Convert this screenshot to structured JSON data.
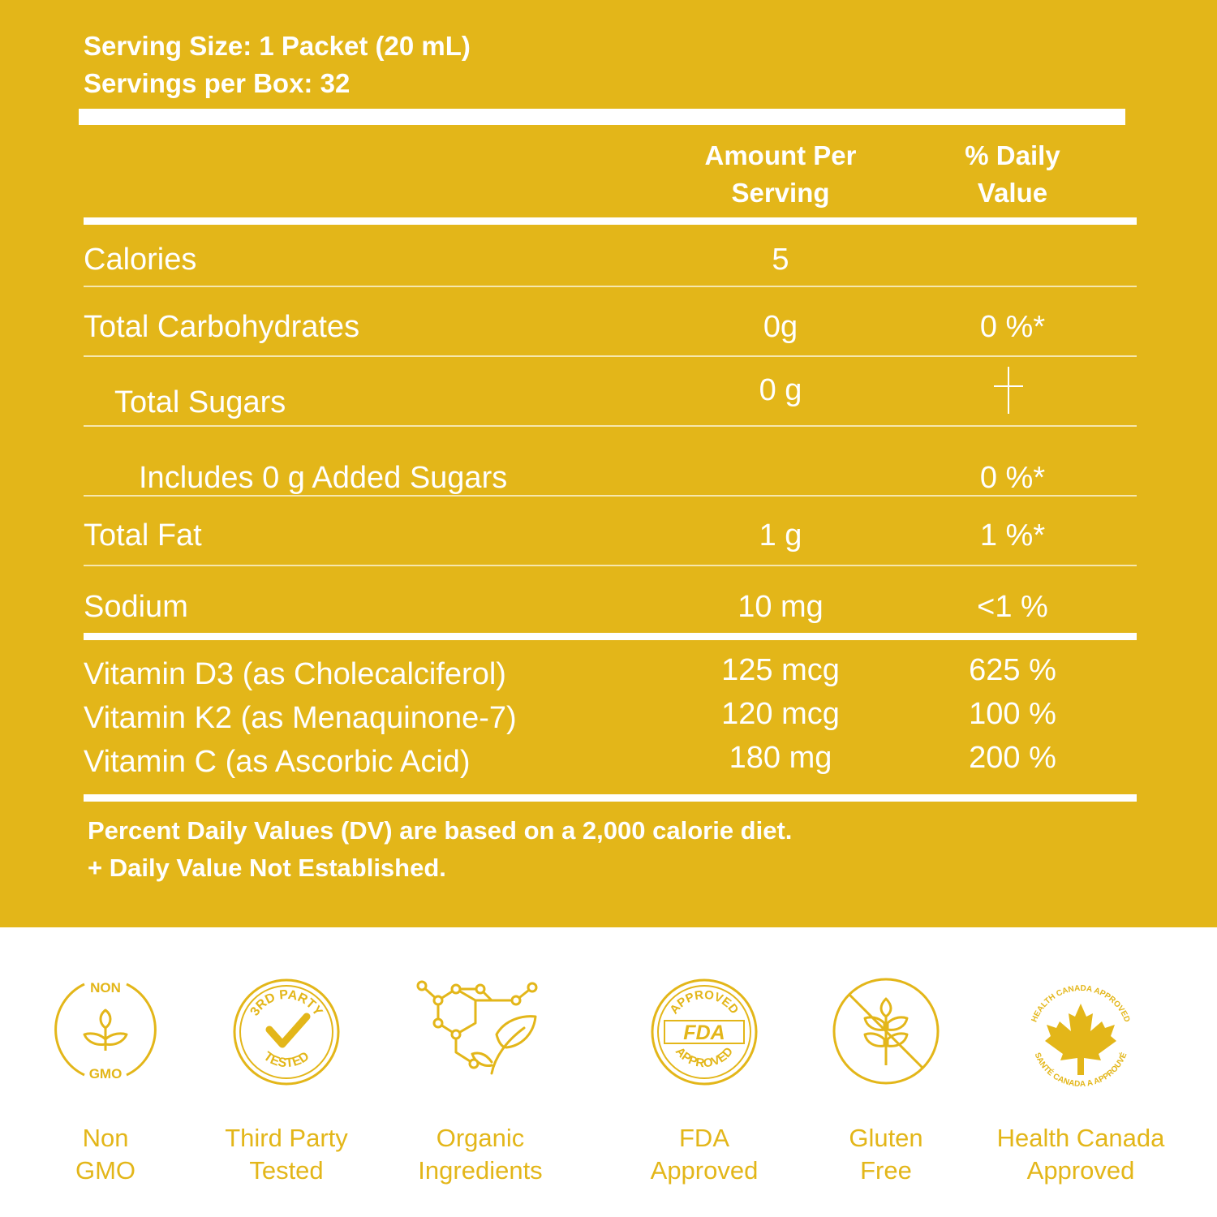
{
  "colors": {
    "panel": "#e3b619",
    "text": "#ffffff",
    "accent": "#e3b619"
  },
  "header": {
    "serving_size": "Serving Size: 1 Packet (20 mL)",
    "servings_per_box": "Servings per Box: 32"
  },
  "columns": {
    "amount_line1": "Amount Per",
    "amount_line2": "Serving",
    "dv_line1": "% Daily",
    "dv_line2": "Value"
  },
  "rows": [
    {
      "label": "Calories",
      "amount": "5",
      "dv": ""
    },
    {
      "label": "Total Carbohydrates",
      "amount": "0g",
      "dv": "0 %*"
    },
    {
      "label": "Total Sugars",
      "amount": "0 g",
      "dv": "+"
    },
    {
      "label": "Includes 0 g Added Sugars",
      "amount": "",
      "dv": "0 %*"
    },
    {
      "label": "Total Fat",
      "amount": "1 g",
      "dv": "1 %*"
    },
    {
      "label": "Sodium",
      "amount": "10 mg",
      "dv": "<1 %"
    }
  ],
  "vitamins": [
    {
      "label": "Vitamin D3 (as Cholecalciferol)",
      "amount": "125 mcg",
      "dv": "625 %"
    },
    {
      "label": "Vitamin K2 (as Menaquinone-7)",
      "amount": "120 mcg",
      "dv": "100 %"
    },
    {
      "label": "Vitamin C (as Ascorbic Acid)",
      "amount": "180 mg",
      "dv": "200 %"
    }
  ],
  "footnotes": [
    "Percent Daily Values (DV) are based on a 2,000 calorie diet.",
    "+ Daily Value Not Established."
  ],
  "badges": [
    {
      "icon": "non-gmo-icon",
      "line1": "Non",
      "line2": "GMO",
      "ring_top": "NON",
      "ring_bottom": "GMO"
    },
    {
      "icon": "third-party-tested-icon",
      "line1": "Third Party",
      "line2": "Tested",
      "ring_top": "3RD PARTY",
      "ring_bottom": "TESTED"
    },
    {
      "icon": "organic-molecule-leaf-icon",
      "line1": "Organic",
      "line2": "Ingredients"
    },
    {
      "icon": "fda-approved-seal-icon",
      "line1": "FDA",
      "line2": "Approved",
      "ring_top": "APPROVED",
      "ring_bottom": "APPROVED",
      "seal_text": "FDA"
    },
    {
      "icon": "gluten-free-wheat-icon",
      "line1": "Gluten",
      "line2": "Free"
    },
    {
      "icon": "maple-leaf-icon",
      "line1": "Health Canada",
      "line2": "Approved",
      "ring_top": "HEALTH CANADA APPROVED",
      "ring_bottom": "SANTÉ CANADA A APPROUVÉ"
    }
  ]
}
